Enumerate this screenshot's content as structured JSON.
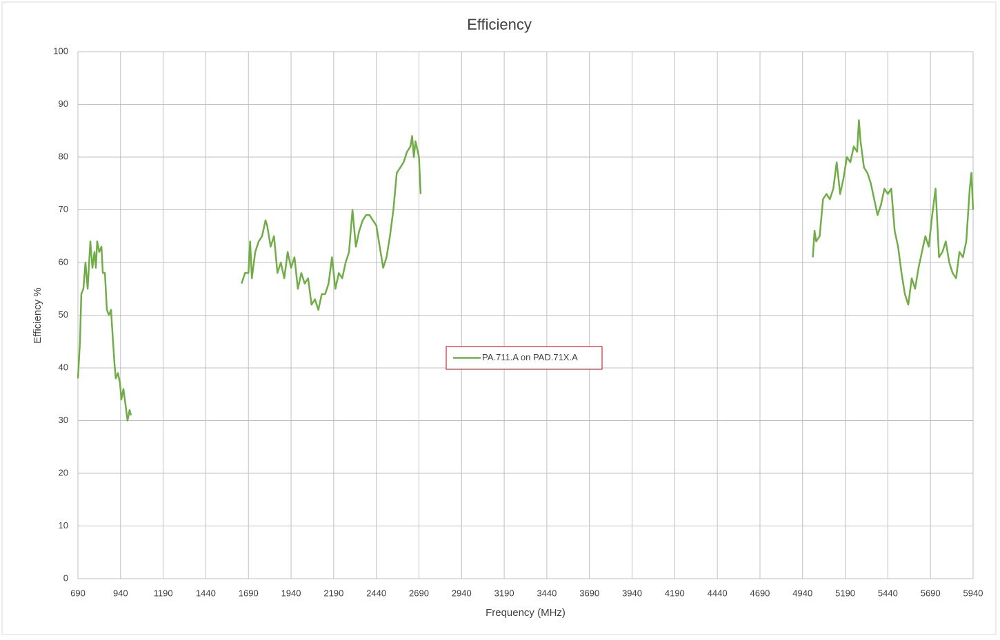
{
  "chart_data": {
    "type": "line",
    "title": "Efficiency",
    "xlabel": "Frequency (MHz)",
    "ylabel": "Efficiency %",
    "x": [
      690,
      702,
      710,
      722,
      734,
      747,
      763,
      775,
      787,
      795,
      803,
      815,
      828,
      836,
      848,
      860,
      872,
      884,
      892,
      904,
      912,
      925,
      937,
      945,
      957,
      969,
      981,
      993,
      1001,
      1300,
      1650,
      1670,
      1690,
      1700,
      1710,
      1730,
      1750,
      1770,
      1790,
      1800,
      1820,
      1840,
      1860,
      1880,
      1900,
      1920,
      1940,
      1960,
      1980,
      2000,
      2020,
      2040,
      2060,
      2080,
      2100,
      2120,
      2140,
      2160,
      2180,
      2200,
      2220,
      2240,
      2260,
      2280,
      2300,
      2320,
      2340,
      2360,
      2380,
      2400,
      2420,
      2440,
      2460,
      2480,
      2500,
      2520,
      2540,
      2560,
      2580,
      2600,
      2620,
      2640,
      2650,
      2660,
      2670,
      2690,
      2700,
      3800,
      5000,
      5010,
      5020,
      5040,
      5060,
      5080,
      5100,
      5120,
      5140,
      5160,
      5180,
      5200,
      5220,
      5240,
      5260,
      5270,
      5280,
      5300,
      5320,
      5340,
      5360,
      5380,
      5400,
      5420,
      5440,
      5460,
      5480,
      5500,
      5520,
      5540,
      5560,
      5580,
      5600,
      5620,
      5640,
      5660,
      5680,
      5700,
      5720,
      5740,
      5760,
      5780,
      5800,
      5820,
      5840,
      5860,
      5880,
      5900,
      5920,
      5930,
      5940
    ],
    "series": [
      {
        "name": "PA.711.A on PAD.71X.A",
        "color": "#70ad47",
        "values": [
          38,
          45,
          54,
          55,
          60,
          55,
          64,
          59,
          62,
          59,
          64,
          62,
          63,
          58,
          58,
          51,
          50,
          51,
          47,
          41,
          38,
          39,
          37,
          34,
          36,
          33,
          30,
          32,
          31,
          null,
          56,
          58,
          58,
          64,
          57,
          62,
          64,
          65,
          68,
          67,
          63,
          65,
          58,
          60,
          57,
          62,
          59,
          61,
          55,
          58,
          56,
          57,
          52,
          53,
          51,
          54,
          54,
          56,
          61,
          55,
          58,
          57,
          60,
          62,
          70,
          63,
          66,
          68,
          69,
          69,
          68,
          67,
          63,
          59,
          61,
          65,
          70,
          77,
          78,
          79,
          81,
          82,
          84,
          80,
          83,
          80,
          73,
          null,
          61,
          66,
          64,
          65,
          72,
          73,
          72,
          74,
          79,
          73,
          76,
          80,
          79,
          82,
          81,
          87,
          83,
          78,
          77,
          75,
          72,
          69,
          71,
          74,
          73,
          74,
          66,
          63,
          58,
          54,
          52,
          57,
          55,
          59,
          62,
          65,
          63,
          69,
          74,
          61,
          62,
          64,
          60,
          58,
          57,
          62,
          61,
          64,
          74,
          77,
          70
        ]
      }
    ],
    "xlim": [
      690,
      5940
    ],
    "xticks": [
      690,
      940,
      1190,
      1440,
      1690,
      1940,
      2190,
      2440,
      2690,
      2940,
      3190,
      3440,
      3690,
      3940,
      4190,
      4440,
      4690,
      4940,
      5190,
      5440,
      5690,
      5940
    ],
    "ylim": [
      0,
      100
    ],
    "yticks": [
      0,
      10,
      20,
      30,
      40,
      50,
      60,
      70,
      80,
      90,
      100
    ],
    "grid": true,
    "legend_position": "center"
  }
}
